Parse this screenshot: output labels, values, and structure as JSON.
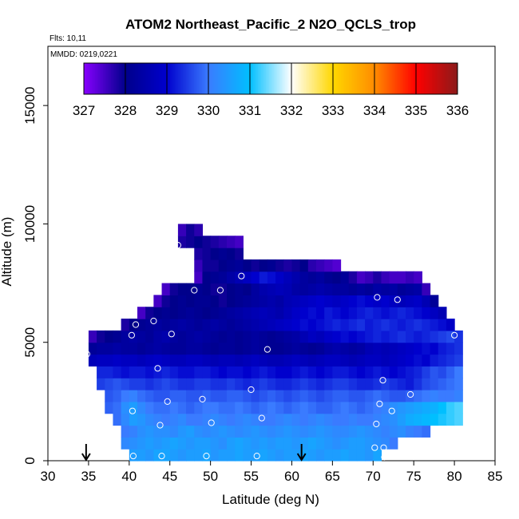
{
  "chart_data": {
    "type": "heatmap",
    "title": "ATOM2 Northeast_Pacific_2 N2O_QCLS_trop",
    "flights_label": "Flts: 10,11",
    "date_label": "MMDD: 0219,0221",
    "xlabel": "Latitude (deg N)",
    "ylabel": "Altitude (m)",
    "xlim": [
      30,
      85
    ],
    "ylim": [
      0,
      17500
    ],
    "x_ticks": [
      "30",
      "35",
      "40",
      "45",
      "50",
      "55",
      "60",
      "65",
      "70",
      "75",
      "80",
      "85"
    ],
    "y_ticks": [
      "0",
      "5000",
      "10000",
      "15000"
    ],
    "colorbar": {
      "ticks": [
        "327",
        "328",
        "329",
        "330",
        "331",
        "332",
        "333",
        "334",
        "335",
        "336"
      ],
      "range": [
        327,
        336
      ],
      "colors": [
        "#8800ff",
        "#00008b",
        "#0000cd",
        "#3a7bff",
        "#00bfff",
        "#ffffff",
        "#ffd700",
        "#ff8c00",
        "#ff0000",
        "#8b1a1a"
      ]
    },
    "grid_cell": {
      "dlat": 1,
      "dalt": 500
    },
    "rows": [
      {
        "alt": 0,
        "lat_from": 40,
        "lat_to": 71,
        "values": [
          330.5,
          330.5,
          330.4,
          330.6,
          330.6,
          330.5,
          330.4,
          330.5,
          330.5,
          330.6,
          330.4,
          330.5,
          330.5,
          330.6,
          330.5,
          330.5,
          330.6,
          330.5,
          330.4,
          330.5,
          330.5,
          330.6,
          330.5,
          330.4,
          330.5,
          330.5,
          330.6,
          330.5,
          330.5,
          330.4,
          330.6
        ]
      },
      {
        "alt": 500,
        "lat_from": 39,
        "lat_to": 73,
        "values": [
          330.2,
          330.3,
          330.4,
          330.5,
          330.4,
          330.5,
          330.6,
          330.5,
          330.4,
          330.5,
          330.5,
          330.4,
          330.3,
          330.5,
          330.6,
          330.5,
          330.4,
          330.5,
          330.4,
          330.5,
          330.5,
          330.4,
          330.5,
          330.6,
          330.5,
          330.4,
          330.3,
          330.4,
          330.5,
          330.5,
          330.4,
          330.3,
          330.2,
          330.0
        ]
      },
      {
        "alt": 1000,
        "lat_from": 39,
        "lat_to": 77,
        "values": [
          330.0,
          330.1,
          330.3,
          330.4,
          330.3,
          330.3,
          330.2,
          330.4,
          330.5,
          330.3,
          330.2,
          330.3,
          330.4,
          330.3,
          330.2,
          330.3,
          330.4,
          330.3,
          330.2,
          330.3,
          330.4,
          330.3,
          330.2,
          330.3,
          330.4,
          330.3,
          330.2,
          330.2,
          330.3,
          330.4,
          330.3,
          330.2,
          330.1,
          330.2,
          330.3,
          330.1,
          330.0,
          329.9
        ]
      },
      {
        "alt": 1500,
        "lat_from": 38,
        "lat_to": 81,
        "values": [
          329.9,
          330.2,
          330.5,
          330.4,
          330.2,
          330.1,
          330.0,
          330.1,
          330.2,
          330.0,
          330.0,
          330.1,
          330.2,
          330.1,
          330.0,
          330.1,
          330.2,
          330.1,
          330.0,
          330.0,
          330.1,
          330.2,
          330.1,
          330.0,
          330.1,
          330.2,
          330.1,
          330.0,
          330.0,
          330.1,
          330.0,
          330.0,
          330.1,
          330.2,
          330.3,
          330.5,
          330.7,
          330.8,
          330.9,
          331.0,
          331.1,
          331.2,
          331.3
        ]
      },
      {
        "alt": 2000,
        "lat_from": 37,
        "lat_to": 81,
        "values": [
          329.8,
          329.9,
          330.3,
          330.5,
          330.2,
          330.0,
          329.9,
          329.9,
          330.0,
          329.9,
          329.8,
          329.9,
          330.0,
          330.0,
          329.9,
          329.9,
          330.0,
          329.9,
          329.8,
          329.9,
          330.0,
          329.9,
          329.8,
          329.9,
          330.0,
          329.9,
          329.8,
          329.8,
          329.9,
          330.0,
          329.9,
          329.8,
          329.9,
          330.0,
          330.1,
          330.3,
          330.4,
          330.5,
          330.6,
          330.7,
          330.8,
          331.0,
          331.2,
          331.3
        ]
      },
      {
        "alt": 2500,
        "lat_from": 37,
        "lat_to": 81,
        "values": [
          329.7,
          329.8,
          330.0,
          330.1,
          329.9,
          329.8,
          329.7,
          329.7,
          329.8,
          329.8,
          329.7,
          329.7,
          329.8,
          329.7,
          329.7,
          329.8,
          329.8,
          329.7,
          329.6,
          329.7,
          329.8,
          329.7,
          329.6,
          329.7,
          329.8,
          329.7,
          329.6,
          329.7,
          329.8,
          329.8,
          329.7,
          329.7,
          329.8,
          329.9,
          329.8,
          329.7,
          329.7,
          329.8,
          329.9,
          330.0,
          330.1,
          330.0,
          330.0,
          330.1
        ]
      },
      {
        "alt": 3000,
        "lat_from": 36,
        "lat_to": 81,
        "values": [
          329.5,
          329.6,
          329.7,
          329.6,
          329.5,
          329.5,
          329.4,
          329.5,
          329.6,
          329.5,
          329.4,
          329.4,
          329.5,
          329.5,
          329.4,
          329.4,
          329.5,
          329.4,
          329.3,
          329.4,
          329.5,
          329.4,
          329.3,
          329.3,
          329.4,
          329.5,
          329.4,
          329.3,
          329.4,
          329.5,
          329.5,
          329.4,
          329.3,
          329.3,
          329.4,
          329.5,
          329.4,
          329.3,
          329.2,
          329.4,
          329.6,
          329.7,
          329.8,
          329.9,
          330.0
        ]
      },
      {
        "alt": 3500,
        "lat_from": 36,
        "lat_to": 81,
        "values": [
          329.3,
          329.3,
          329.2,
          329.1,
          329.2,
          329.2,
          329.1,
          329.2,
          329.3,
          329.2,
          329.1,
          329.1,
          329.2,
          329.2,
          329.1,
          329.0,
          329.1,
          329.1,
          329.0,
          329.1,
          329.2,
          329.1,
          329.0,
          329.0,
          329.1,
          329.2,
          329.1,
          329.0,
          329.1,
          329.2,
          329.2,
          329.1,
          329.0,
          329.1,
          329.2,
          329.1,
          329.0,
          329.1,
          329.2,
          329.3,
          329.5,
          329.7,
          329.6,
          329.8,
          330.0
        ]
      },
      {
        "alt": 4000,
        "lat_from": 35,
        "lat_to": 81,
        "values": [
          328.7,
          328.8,
          328.8,
          328.9,
          328.8,
          328.8,
          328.7,
          328.8,
          328.9,
          328.8,
          328.7,
          328.7,
          328.8,
          328.8,
          328.7,
          328.6,
          328.7,
          328.7,
          328.6,
          328.7,
          328.8,
          328.7,
          328.6,
          328.6,
          328.7,
          328.8,
          328.7,
          328.6,
          328.7,
          328.8,
          328.8,
          328.7,
          328.6,
          328.7,
          328.8,
          328.8,
          328.7,
          328.8,
          328.9,
          329.0,
          329.1,
          329.0,
          329.2,
          329.3,
          329.4,
          329.5
        ]
      },
      {
        "alt": 4500,
        "lat_from": 35,
        "lat_to": 81,
        "values": [
          328.2,
          328.3,
          328.3,
          328.4,
          328.3,
          328.3,
          328.2,
          328.3,
          328.4,
          328.3,
          328.2,
          328.2,
          328.3,
          328.3,
          328.2,
          328.1,
          328.2,
          328.2,
          328.1,
          328.2,
          328.3,
          328.2,
          328.1,
          328.1,
          328.2,
          328.3,
          328.2,
          328.1,
          328.2,
          328.4,
          328.5,
          328.4,
          328.3,
          328.4,
          328.6,
          328.7,
          328.6,
          328.7,
          328.8,
          328.9,
          329.0,
          329.1,
          329.0,
          329.2,
          329.3,
          329.4
        ]
      },
      {
        "alt": 5000,
        "lat_from": 35,
        "lat_to": 81,
        "values": [
          327.6,
          327.9,
          328.0,
          328.1,
          328.3,
          328.4,
          328.3,
          328.2,
          328.4,
          328.5,
          328.3,
          328.2,
          328.3,
          328.4,
          328.3,
          328.2,
          328.1,
          328.2,
          328.1,
          328.2,
          328.3,
          328.2,
          328.1,
          328.2,
          328.3,
          328.4,
          328.6,
          328.8,
          328.7,
          328.9,
          329.0,
          329.1,
          329.0,
          329.1,
          329.2,
          329.3,
          329.2,
          329.3,
          329.4,
          329.3,
          329.2,
          329.3,
          329.4,
          329.5,
          329.6,
          329.4
        ]
      },
      {
        "alt": 5500,
        "lat_from": 39,
        "lat_to": 80,
        "values": [
          327.8,
          328.0,
          328.1,
          328.2,
          328.3,
          328.2,
          328.3,
          328.4,
          328.3,
          328.2,
          328.3,
          328.4,
          328.3,
          328.2,
          328.3,
          328.4,
          328.5,
          328.6,
          328.7,
          328.8,
          328.9,
          329.0,
          329.1,
          329.0,
          329.1,
          329.2,
          329.3,
          329.2,
          329.3,
          329.4,
          329.2,
          329.3,
          329.4,
          329.3,
          329.2,
          329.3,
          329.4,
          329.3,
          329.2,
          329.1,
          328.9
        ]
      },
      {
        "alt": 6000,
        "lat_from": 41,
        "lat_to": 79,
        "values": [
          327.5,
          327.9,
          328.0,
          328.1,
          328.0,
          328.1,
          328.2,
          328.1,
          328.0,
          328.1,
          328.2,
          328.3,
          328.4,
          328.5,
          328.6,
          328.7,
          328.6,
          328.5,
          328.7,
          328.9,
          329.0,
          329.1,
          329.0,
          329.2,
          329.1,
          329.0,
          329.1,
          329.2,
          329.3,
          329.2,
          329.1,
          329.2,
          329.3,
          329.2,
          329.1,
          329.0,
          328.8,
          328.6
        ]
      },
      {
        "alt": 6500,
        "lat_from": 43,
        "lat_to": 78,
        "values": [
          327.5,
          327.9,
          328.0,
          328.1,
          328.0,
          328.1,
          328.1,
          328.0,
          327.9,
          328.0,
          328.1,
          328.2,
          328.3,
          328.4,
          328.5,
          328.4,
          328.6,
          328.7,
          328.8,
          328.9,
          329.0,
          328.9,
          328.8,
          328.9,
          329.0,
          329.1,
          329.0,
          328.9,
          329.0,
          328.8,
          328.7,
          328.8,
          328.9,
          328.6,
          328.2
        ]
      },
      {
        "alt": 7000,
        "lat_from": 44,
        "lat_to": 77,
        "values": [
          327.5,
          327.9,
          328.0,
          328.0,
          328.1,
          328.0,
          327.9,
          327.9,
          328.0,
          328.1,
          328.0,
          328.3,
          328.5,
          328.6,
          328.7,
          328.6,
          328.4,
          328.3,
          328.4,
          328.5,
          328.4,
          328.3,
          328.3,
          328.2,
          328.3,
          328.2,
          328.4,
          328.3,
          328.4,
          328.2,
          328.3,
          328.4,
          327.6
        ]
      },
      {
        "alt": 7500,
        "lat_from": 48,
        "lat_to": 76,
        "values": [
          327.5,
          328.0,
          328.1,
          328.2,
          328.4,
          328.6,
          328.8,
          329.0,
          329.2,
          329.1,
          328.9,
          328.7,
          328.5,
          328.3,
          328.2,
          328.3,
          328.1,
          328.0,
          328.2,
          327.8,
          327.5,
          327.6,
          327.8,
          327.6,
          327.5,
          327.5,
          327.6,
          327.5
        ]
      },
      {
        "alt": 8000,
        "lat_from": 48,
        "lat_to": 66,
        "values": [
          327.6,
          327.9,
          327.9,
          328.0,
          328.1,
          328.2,
          328.0,
          327.9,
          328.0,
          328.1,
          327.9,
          327.8,
          327.9,
          328.0,
          327.7,
          327.6,
          327.5,
          327.4
        ]
      },
      {
        "alt": 8500,
        "lat_from": 48,
        "lat_to": 54,
        "values": [
          327.8,
          327.9,
          328.0,
          328.1,
          328.0,
          327.9
        ]
      },
      {
        "alt": 9000,
        "lat_from": 46,
        "lat_to": 54,
        "values": [
          327.8,
          327.9,
          328.0,
          327.9,
          327.8,
          327.7,
          327.6,
          327.5
        ]
      },
      {
        "alt": 9500,
        "lat_from": 46,
        "lat_to": 49,
        "values": [
          327.6,
          327.9,
          327.7
        ]
      }
    ],
    "points": [
      {
        "lat": 34.8,
        "alt": 4500
      },
      {
        "lat": 40.3,
        "alt": 5300
      },
      {
        "lat": 40.8,
        "alt": 5750
      },
      {
        "lat": 43.0,
        "alt": 5900
      },
      {
        "lat": 45.2,
        "alt": 5350
      },
      {
        "lat": 43.5,
        "alt": 3900
      },
      {
        "lat": 44.7,
        "alt": 2500
      },
      {
        "lat": 49.0,
        "alt": 2600
      },
      {
        "lat": 40.4,
        "alt": 2100
      },
      {
        "lat": 43.8,
        "alt": 1500
      },
      {
        "lat": 50.1,
        "alt": 1600
      },
      {
        "lat": 56.3,
        "alt": 1800
      },
      {
        "lat": 55.0,
        "alt": 3000
      },
      {
        "lat": 57.0,
        "alt": 4700
      },
      {
        "lat": 46.0,
        "alt": 9100
      },
      {
        "lat": 48.0,
        "alt": 7200
      },
      {
        "lat": 51.2,
        "alt": 7200
      },
      {
        "lat": 53.8,
        "alt": 7800
      },
      {
        "lat": 70.5,
        "alt": 6900
      },
      {
        "lat": 73.0,
        "alt": 6800
      },
      {
        "lat": 80.0,
        "alt": 5300
      },
      {
        "lat": 71.2,
        "alt": 3400
      },
      {
        "lat": 74.6,
        "alt": 2800
      },
      {
        "lat": 70.8,
        "alt": 2400
      },
      {
        "lat": 72.3,
        "alt": 2100
      },
      {
        "lat": 70.4,
        "alt": 1550
      },
      {
        "lat": 80.3,
        "alt": 1200
      },
      {
        "lat": 40.5,
        "alt": 200
      },
      {
        "lat": 44.0,
        "alt": 200
      },
      {
        "lat": 49.5,
        "alt": 200
      },
      {
        "lat": 55.7,
        "alt": 200
      },
      {
        "lat": 70.2,
        "alt": 550
      },
      {
        "lat": 71.3,
        "alt": 550
      },
      {
        "lat": 71.4,
        "alt": 150
      }
    ],
    "arrows": [
      34.7,
      61.2
    ]
  }
}
